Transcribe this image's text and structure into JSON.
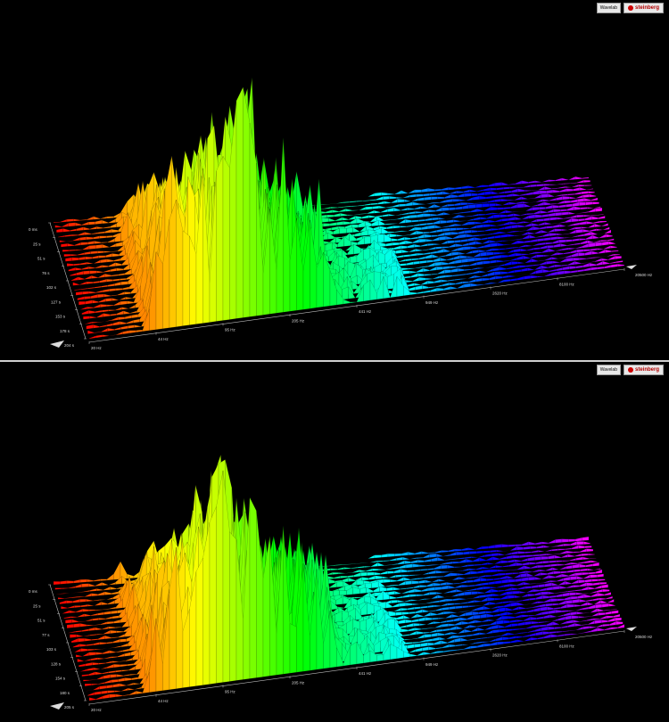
{
  "logo": {
    "product": "Wavelab",
    "brand": "steinberg"
  },
  "chart_data": [
    {
      "type": "waterfall-3d",
      "x_axis": {
        "scale": "log",
        "unit": "Hz",
        "ticks": [
          "20 Hz",
          "44 Hz",
          "95 Hz",
          "205 Hz",
          "441 Hz",
          "949 Hz",
          "2620 Hz",
          "8100 Hz",
          "20500 Hz"
        ]
      },
      "z_axis": {
        "ticks": [
          "0 ms",
          "25 s",
          "51 s",
          "76 s",
          "102 s",
          "127 s",
          "153 s",
          "178 s",
          "204 s"
        ]
      },
      "peaks_hz": [
        48,
        52,
        58,
        62,
        68,
        75,
        82,
        90,
        100,
        110,
        120,
        135,
        150,
        165,
        180,
        200,
        240,
        300,
        350,
        420
      ],
      "peak_heights": [
        0.3,
        0.25,
        0.55,
        0.65,
        0.5,
        0.7,
        0.6,
        0.55,
        0.75,
        0.85,
        0.9,
        0.8,
        0.95,
        0.85,
        1.0,
        0.8,
        0.6,
        0.5,
        0.55,
        0.45
      ]
    },
    {
      "type": "waterfall-3d",
      "x_axis": {
        "scale": "log",
        "unit": "Hz",
        "ticks": [
          "20 Hz",
          "44 Hz",
          "95 Hz",
          "205 Hz",
          "441 Hz",
          "949 Hz",
          "2620 Hz",
          "8100 Hz",
          "20500 Hz"
        ]
      },
      "z_axis": {
        "ticks": [
          "0 ms",
          "25 s",
          "51 s",
          "77 s",
          "103 s",
          "128 s",
          "154 s",
          "180 s",
          "205 s"
        ]
      },
      "peaks_hz": [
        48,
        55,
        60,
        66,
        72,
        80,
        88,
        95,
        105,
        115,
        125,
        140,
        155,
        170,
        190,
        210,
        250,
        320,
        380,
        450
      ],
      "peak_heights": [
        0.3,
        0.5,
        0.6,
        0.45,
        0.55,
        0.5,
        0.65,
        0.7,
        0.85,
        1.0,
        0.9,
        0.8,
        0.85,
        0.75,
        0.7,
        0.6,
        0.55,
        0.5,
        0.45,
        0.4
      ]
    }
  ]
}
